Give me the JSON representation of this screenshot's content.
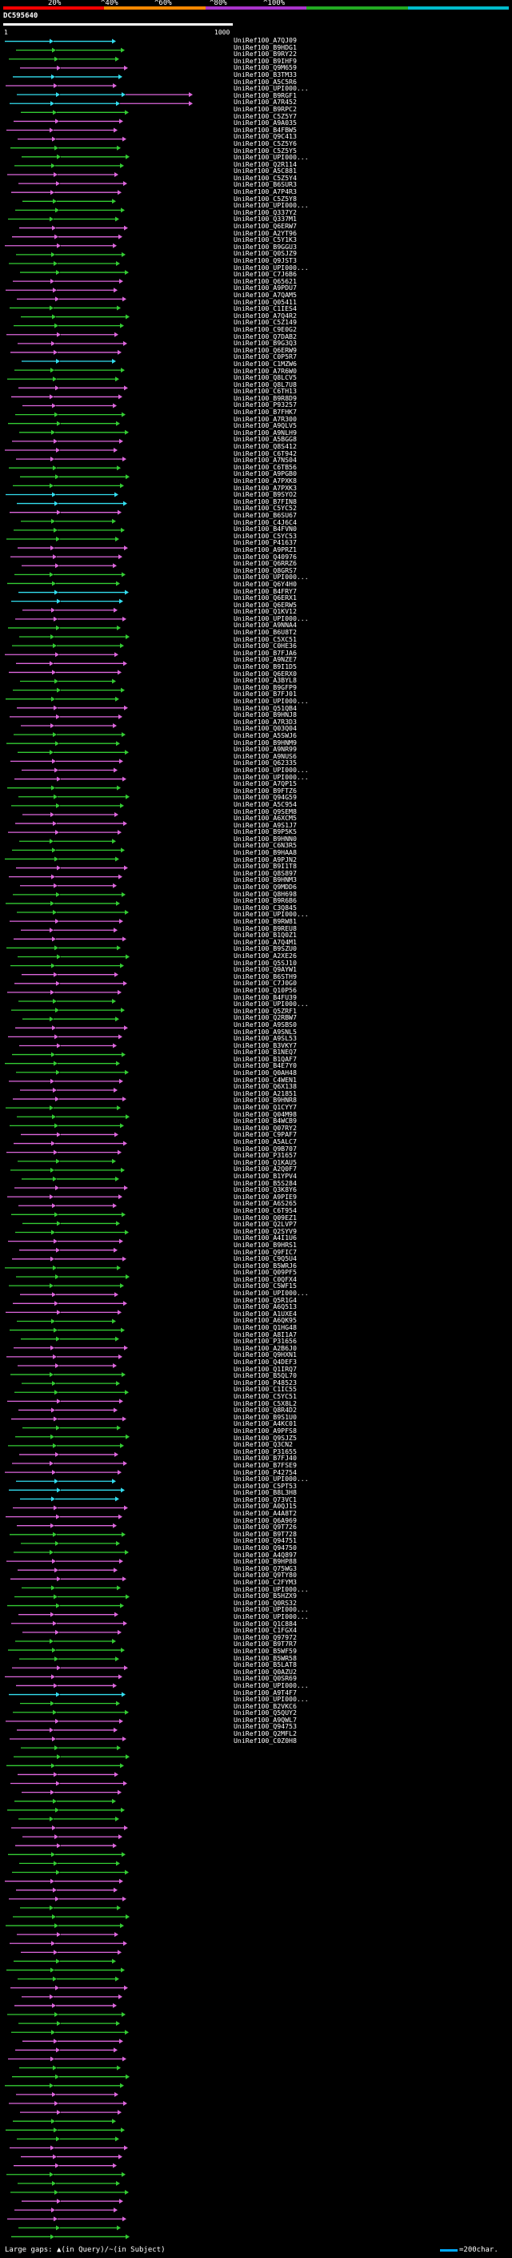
{
  "header": {
    "scale_labels": [
      "20%",
      "^40%",
      "^60%",
      "^80%",
      "^100%"
    ],
    "scale_colors": [
      "#ff0000",
      "#ff8800",
      "#aa33cc",
      "#22aa22",
      "#00bbcc"
    ],
    "query_id": "DC595640",
    "range_start": "1",
    "range_end": "1000"
  },
  "legend": {
    "large_gaps": "Large gaps: ",
    "in_query_text": "(in Query)/",
    "in_subject_text": "(in Subject)",
    "scale_text": "=200char."
  },
  "colors": {
    "green": "#33cc33",
    "violet": "#dd66dd",
    "cyan": "#33ddee",
    "white": "#ffffff"
  },
  "hits": [
    "UniRef100_A7QJ09",
    "UniRef100_B9HDG1",
    "UniRef100_B9RY22",
    "UniRef100_B9IHF9",
    "UniRef100_Q9M659",
    "UniRef100_B3TM33",
    "UniRef100_A5C5R6",
    "UniRef100_UPI000...",
    "UniRef100_B9RGF1",
    "UniRef100_A7R452",
    "UniRef100_B9RPC2",
    "UniRef100_C5Z5Y7",
    "UniRef100_A9A035",
    "UniRef100_B4FBW5",
    "UniRef100_Q9C413",
    "UniRef100_C5Z5Y6",
    "UniRef100_C5Z5Y5",
    "UniRef100_UPI000...",
    "UniRef100_Q2R114",
    "UniRef100_A5C881",
    "UniRef100_C5Z5Y4",
    "UniRef100_B6SUR3",
    "UniRef100_A7P4R3",
    "UniRef100_C5Z5Y8",
    "UniRef100_UPI000...",
    "UniRef100_Q337Y2",
    "UniRef100_Q337M1",
    "UniRef100_Q6ERW7",
    "UniRef100_A2YT96",
    "UniRef100_C5Y1K3",
    "UniRef100_B9GGU3",
    "UniRef100_Q0SJZ9",
    "UniRef100_Q9JST3",
    "UniRef100_UPI000...",
    "UniRef100_C7J6B6",
    "UniRef100_Q65621",
    "UniRef100_A9PDU7",
    "UniRef100_A7QAM5",
    "UniRef100_Q05411",
    "UniRef100_C1IES4",
    "UniRef100_A7Q4R2",
    "UniRef100_C5Z149",
    "UniRef100_C9E0G2",
    "UniRef100_Q7DAB2",
    "UniRef100_B9G3Q3",
    "UniRef100_Q6ERW9",
    "UniRef100_C0P5R7",
    "UniRef100_C1MZW6",
    "UniRef100_A7R6W0",
    "UniRef100_Q8LCV5",
    "UniRef100_Q8L7U8",
    "UniRef100_C6TH13",
    "UniRef100_B9R8D9",
    "UniRef100_P93257",
    "UniRef100_B7FHK7",
    "UniRef100_A7R300",
    "UniRef100_A9QLV5",
    "UniRef100_A9NLH9",
    "UniRef100_A5BGG8",
    "UniRef100_Q8S412",
    "UniRef100_C6T942",
    "UniRef100_A7NS04",
    "UniRef100_C6TB56",
    "UniRef100_A9PGB0",
    "UniRef100_A7PXK8",
    "UniRef100_A7PXK3",
    "UniRef100_B9SYO2",
    "UniRef100_B7FIN8",
    "UniRef100_C5YC52",
    "UniRef100_B6SU67",
    "UniRef100_C4J6C4",
    "UniRef100_B4FVN0",
    "UniRef100_C5YC53",
    "UniRef100_P41637",
    "UniRef100_A9PRZ1",
    "UniRef100_Q40976",
    "UniRef100_Q6RRZ6",
    "UniRef100_Q8GRS7",
    "UniRef100_UPI000...",
    "UniRef100_Q6Y4H0",
    "UniRef100_B4FRY7",
    "UniRef100_Q6ERX1",
    "UniRef100_Q6ERW5",
    "UniRef100_Q1KV12",
    "UniRef100_UPI000...",
    "UniRef100_A9NNA4",
    "UniRef100_B6U8T2",
    "UniRef100_C5XC51",
    "UniRef100_C0HE36",
    "UniRef100_B7FJA6",
    "UniRef100_A9NZE7",
    "UniRef100_B9I1D5",
    "UniRef100_Q6ERX0",
    "UniRef100_A3BYL8",
    "UniRef100_B9GFP9",
    "UniRef100_B7FJ01",
    "UniRef100_UPI000...",
    "UniRef100_Q51QB4",
    "UniRef100_B9HNJ8",
    "UniRef100_A7R3D3",
    "UniRef100_Q03Q04",
    "UniRef100_A5SWJ6",
    "UniRef100_B9HNM9",
    "UniRef100_A9NR99",
    "UniRef100_A9NUS6",
    "UniRef100_Q62335",
    "UniRef100_UPI000...",
    "UniRef100_UPI000...",
    "UniRef100_A7QP15",
    "UniRef100_B9FTZ6",
    "UniRef100_Q94G59",
    "UniRef100_A5C954",
    "UniRef100_Q9SEM8",
    "UniRef100_A6XCM5",
    "UniRef100_A9S1J7",
    "UniRef100_B9P5K5",
    "UniRef100_B9HNN0",
    "UniRef100_C6N3R5",
    "UniRef100_B9HAA8",
    "UniRef100_A9PJN2",
    "UniRef100_B9I1T8",
    "UniRef100_Q8S897",
    "UniRef100_B9HNM3",
    "UniRef100_Q9MDD6",
    "UniRef100_Q8H698",
    "UniRef100_B9R6B6",
    "UniRef100_C3Q845",
    "UniRef100_UPI000...",
    "UniRef100_B9RW81",
    "UniRef100_B9REU8",
    "UniRef100_B1Q0Z1",
    "UniRef100_A7Q4M1",
    "UniRef100_B9SZU0",
    "UniRef100_A2XE26",
    "UniRef100_Q5SJ10",
    "UniRef100_Q9AYW1",
    "UniRef100_B6STH9",
    "UniRef100_C7J0G0",
    "UniRef100_Q10P56",
    "UniRef100_B4FU39",
    "UniRef100_UPI000...",
    "UniRef100_Q5ZRF1",
    "UniRef100_Q2RBW7",
    "UniRef100_A9SBS0",
    "UniRef100_A9SNL5",
    "UniRef100_A9SL53",
    "UniRef100_B3VKY7",
    "UniRef100_B1NEQ7",
    "UniRef100_B1QAF7",
    "UniRef100_B4E7Y0",
    "UniRef100_Q0AH48",
    "UniRef100_C4WEN1",
    "UniRef100_Q6X138",
    "UniRef100_A21851",
    "UniRef100_B9HNR8",
    "UniRef100_Q1CYY7",
    "UniRef100_Q04M98",
    "UniRef100_B4WCB9",
    "UniRef100_Q07RY2",
    "UniRef100_C9PAF7",
    "UniRef100_A5ALC7",
    "UniRef100_Q9B707",
    "UniRef100_P31657",
    "UniRef100_Q1KAU5",
    "UniRef100_A2Q0F7",
    "UniRef100_B1YPV4",
    "UniRef100_B5S284",
    "UniRef100_Q3K8Y6",
    "UniRef100_A9PIE9",
    "UniRef100_A6S265",
    "UniRef100_C6T954",
    "UniRef100_Q09EZ1",
    "UniRef100_Q2LVP7",
    "UniRef100_Q2SYV9",
    "UniRef100_A4I1U6",
    "UniRef100_B9HRS1",
    "UniRef100_Q9FIC7",
    "UniRef100_C9Q5U4",
    "UniRef100_B5WRJ6",
    "UniRef100_Q09PF5",
    "UniRef100_C0QFX4",
    "UniRef100_C5WF15",
    "UniRef100_UPI000...",
    "UniRef100_Q5R1G4",
    "UniRef100_A6Q513",
    "UniRef100_A1UXE4",
    "UniRef100_A6QK95",
    "UniRef100_Q1HG48",
    "UniRef100_A8I1A7",
    "UniRef100_P31656",
    "UniRef100_A2B6J0",
    "UniRef100_Q9HXN1",
    "UniRef100_Q4DEF3",
    "UniRef100_Q1IRQ7",
    "UniRef100_B5QL70",
    "UniRef100_P48523",
    "UniRef100_C1IC55",
    "UniRef100_C5YC51",
    "UniRef100_C5X8L2",
    "UniRef100_Q8R4D2",
    "UniRef100_B9S1U0",
    "UniRef100_A4KC01",
    "UniRef100_A9PFS8",
    "UniRef100_Q9SJZ5",
    "UniRef100_Q3CN2",
    "UniRef100_P31655",
    "UniRef100_B7FJ40",
    "UniRef100_B7FSE9",
    "UniRef100_P42754",
    "UniRef100_UPI000...",
    "UniRef100_C5PT53",
    "UniRef100_B8L3H8",
    "UniRef100_Q73VC1",
    "UniRef100_A0QJ15",
    "UniRef100_A4A8T2",
    "UniRef100_Q6A969",
    "UniRef100_Q9T726",
    "UniRef100_B9T728",
    "UniRef100_Q94751",
    "UniRef100_Q94750",
    "UniRef100_A4Q897",
    "UniRef100_B9HP88",
    "UniRef100_Q75WG3",
    "UniRef100_Q9TY80",
    "UniRef100_C2FYM3",
    "UniRef100_UPI000...",
    "UniRef100_B5HZX9",
    "UniRef100_Q0RS32",
    "UniRef100_UPI000...",
    "UniRef100_UPI000...",
    "UniRef100_Q1C884",
    "UniRef100_C1FGX4",
    "UniRef100_Q97972",
    "UniRef100_B9T7R7",
    "UniRef100_B5WF59",
    "UniRef100_B5WR58",
    "UniRef100_B5LAT8",
    "UniRef100_Q0AZU2",
    "UniRef100_Q0SR69",
    "UniRef100_UPI000...",
    "UniRef100_A9T4F7",
    "UniRef100_UPI000...",
    "UniRef100_B2VKC6",
    "UniRef100_Q5QUY2",
    "UniRef100_A9QWL7",
    "UniRef100_Q94753",
    "UniRef100_Q2MFL2",
    "UniRef100_C0Z0H8"
  ]
}
